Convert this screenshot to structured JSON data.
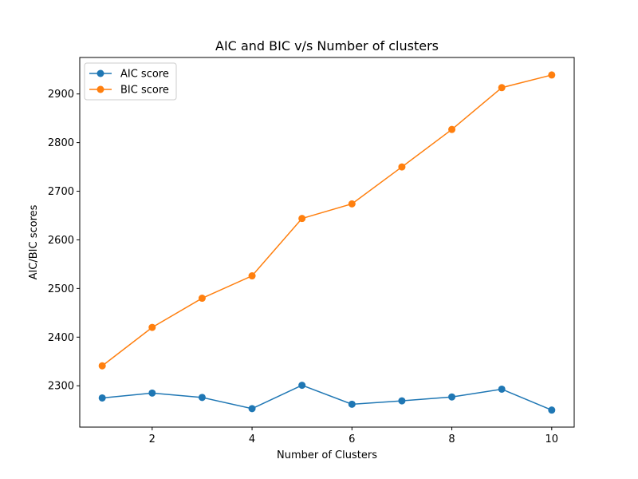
{
  "chart_data": {
    "type": "line",
    "title": "AIC and BIC v/s Number of clusters",
    "xlabel": "Number of Clusters",
    "ylabel": "AIC/BIC scores",
    "x": [
      1,
      2,
      3,
      4,
      5,
      6,
      7,
      8,
      9,
      10
    ],
    "xlim": [
      0.55,
      10.45
    ],
    "ylim": [
      2215,
      2975
    ],
    "xticks": [
      2,
      4,
      6,
      8,
      10
    ],
    "yticks": [
      2300,
      2400,
      2500,
      2600,
      2700,
      2800,
      2900
    ],
    "grid": false,
    "legend_position": "top-left",
    "series": [
      {
        "name": "AIC score",
        "color": "#1f77b4",
        "values": [
          2275,
          2285,
          2276,
          2253,
          2301,
          2262,
          2269,
          2277,
          2293,
          2250
        ]
      },
      {
        "name": "BIC score",
        "color": "#ff7f0e",
        "values": [
          2341,
          2420,
          2480,
          2526,
          2644,
          2674,
          2750,
          2827,
          2913,
          2939
        ]
      }
    ]
  }
}
